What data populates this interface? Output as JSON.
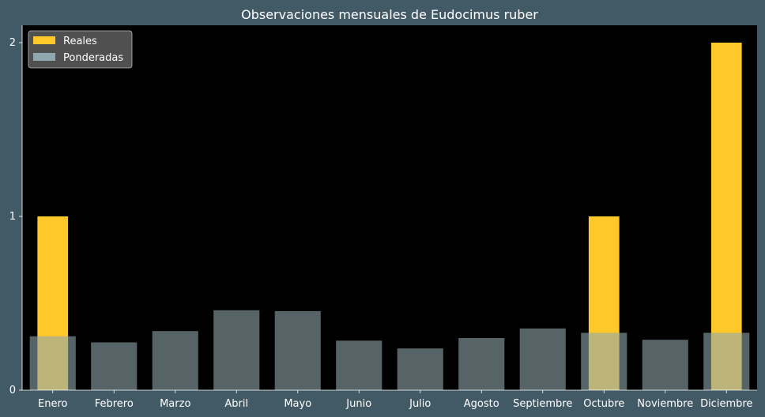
{
  "chart_data": {
    "type": "bar",
    "title": "Observaciones mensuales de Eudocimus ruber",
    "xlabel": "",
    "ylabel": "",
    "categories": [
      "Enero",
      "Febrero",
      "Marzo",
      "Abril",
      "Mayo",
      "Junio",
      "Julio",
      "Agosto",
      "Septiembre",
      "Octubre",
      "Noviembre",
      "Diciembre"
    ],
    "series": [
      {
        "name": "Reales",
        "color": "#ffc82a",
        "values": [
          1,
          0,
          0,
          0,
          0,
          0,
          0,
          0,
          0,
          1,
          0,
          2
        ]
      },
      {
        "name": "Ponderadas",
        "color": "#8fa7ae",
        "opacity": 0.6,
        "values": [
          0.31,
          0.275,
          0.34,
          0.46,
          0.455,
          0.285,
          0.24,
          0.3,
          0.355,
          0.33,
          0.29,
          0.33
        ]
      }
    ],
    "yticks": [
      0,
      1,
      2
    ],
    "ylim": [
      0,
      2.1
    ],
    "grid": false,
    "legend": "top-left",
    "colors": {
      "figure_background": "#425a66",
      "plot_background": "#000000",
      "text": "#ffffff"
    }
  }
}
